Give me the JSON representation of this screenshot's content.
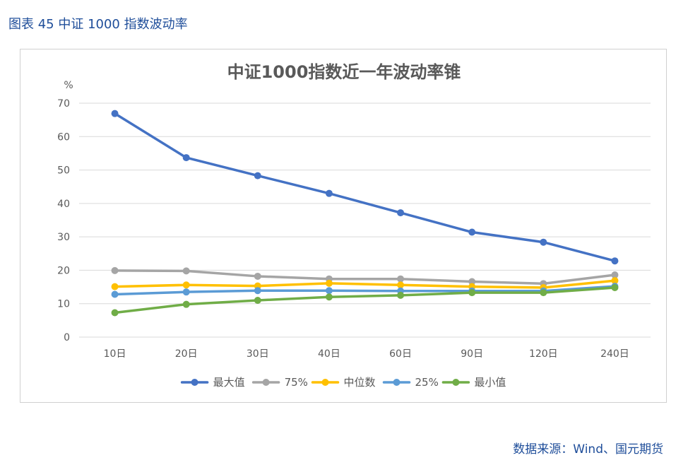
{
  "figure_caption": "图表 45 中证 1000 指数波动率",
  "source": "数据来源：Wind、国元期货",
  "colors": {
    "max": "#4472c4",
    "p75": "#a5a5a5",
    "median": "#ffc000",
    "p25": "#5b9bd5",
    "min": "#70ad47",
    "grid": "#d9d9d9",
    "text": "#595959"
  },
  "chart_data": {
    "type": "line",
    "title": "中证1000指数近一年波动率锥",
    "ylabel": "%",
    "xlabel": "",
    "categories": [
      "10日",
      "20日",
      "30日",
      "40日",
      "60日",
      "90日",
      "120日",
      "240日"
    ],
    "ylim": [
      0,
      70
    ],
    "yticks": [
      0,
      10,
      20,
      30,
      40,
      50,
      60,
      70
    ],
    "grid": true,
    "legend_position": "bottom",
    "series": [
      {
        "name": "最大值",
        "color_key": "max",
        "values": [
          66.9,
          53.7,
          48.3,
          43.0,
          37.2,
          31.4,
          28.4,
          22.8
        ]
      },
      {
        "name": "75%",
        "color_key": "p75",
        "values": [
          19.9,
          19.8,
          18.2,
          17.4,
          17.4,
          16.6,
          16.0,
          18.6
        ]
      },
      {
        "name": "中位数",
        "color_key": "median",
        "values": [
          15.1,
          15.6,
          15.3,
          16.1,
          15.6,
          15.1,
          14.8,
          16.9
        ]
      },
      {
        "name": "25%",
        "color_key": "p25",
        "values": [
          12.8,
          13.5,
          13.9,
          13.9,
          13.8,
          13.8,
          13.8,
          15.2
        ]
      },
      {
        "name": "最小值",
        "color_key": "min",
        "values": [
          7.3,
          9.8,
          11.0,
          12.0,
          12.5,
          13.3,
          13.3,
          14.8
        ]
      }
    ]
  }
}
